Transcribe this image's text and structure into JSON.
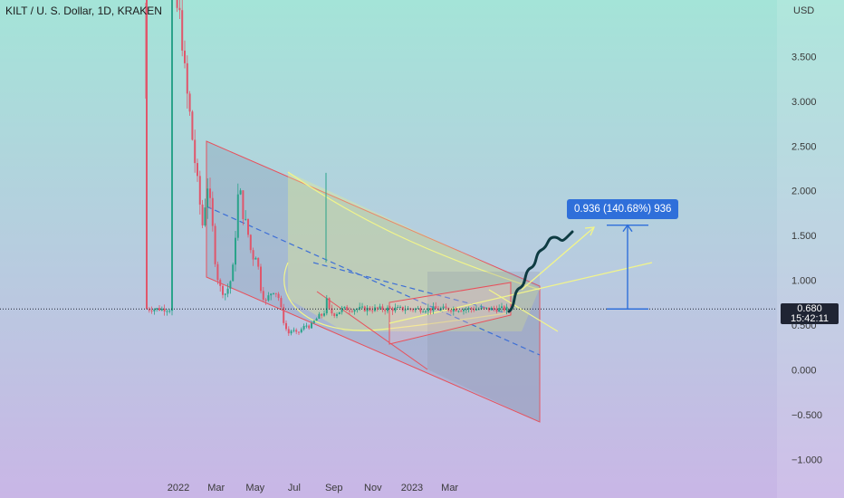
{
  "title": "KILT / U. S. Dollar, 1D, KRAKEN",
  "price_label": {
    "price": "0.680",
    "countdown": "15:42:11"
  },
  "measure_label": "0.936 (140.68%) 936",
  "colors": {
    "up": "#2aa38a",
    "down": "#e0566b",
    "channel": "#e8505b",
    "trend": "#3d6fd6",
    "measure": "#2f6fda",
    "projection": "#0e3b42",
    "arrow": "#f2f58a",
    "bg_top": "#a4e4d8",
    "bg_bottom": "#c9b6e6"
  },
  "chart_data": {
    "type": "candlestick",
    "title": "KILT / U. S. Dollar, 1D, KRAKEN",
    "ylabel": "USD",
    "ylim": [
      -1.3,
      4.3
    ],
    "yticks": [
      "3.500",
      "3.000",
      "2.500",
      "2.000",
      "1.500",
      "1.000",
      "0.500",
      "0.000",
      "−0.500",
      "−1.000"
    ],
    "ytick_values": [
      3.5,
      3.0,
      2.5,
      2.0,
      1.5,
      1.0,
      0.5,
      0.0,
      -0.5,
      -1.0
    ],
    "xticks": [
      "2022",
      "Mar",
      "May",
      "Jul",
      "Sep",
      "Nov",
      "2023",
      "Mar"
    ],
    "grid": false,
    "last_price": 0.68,
    "measure": {
      "from": 0.68,
      "to": 1.616,
      "change": 0.936,
      "percent": 140.68
    },
    "price_path": [
      [
        "2021-12-19",
        4.3
      ],
      [
        "2021-12-24",
        4.1
      ],
      [
        "2022-01-01",
        4.0
      ],
      [
        "2022-01-06",
        3.8
      ],
      [
        "2022-01-12",
        3.2
      ],
      [
        "2022-01-18",
        2.9
      ],
      [
        "2022-01-24",
        2.5
      ],
      [
        "2022-02-01",
        2.0
      ],
      [
        "2022-02-08",
        1.6
      ],
      [
        "2022-02-15",
        2.1
      ],
      [
        "2022-02-22",
        1.7
      ],
      [
        "2022-03-01",
        1.1
      ],
      [
        "2022-03-08",
        0.9
      ],
      [
        "2022-03-15",
        0.85
      ],
      [
        "2022-03-22",
        0.95
      ],
      [
        "2022-03-29",
        1.2
      ],
      [
        "2022-04-02",
        1.8
      ],
      [
        "2022-04-06",
        2.05
      ],
      [
        "2022-04-12",
        1.75
      ],
      [
        "2022-04-19",
        1.55
      ],
      [
        "2022-04-26",
        1.25
      ],
      [
        "2022-05-03",
        1.3
      ],
      [
        "2022-05-10",
        0.9
      ],
      [
        "2022-05-17",
        0.75
      ],
      [
        "2022-05-24",
        0.85
      ],
      [
        "2022-05-31",
        0.9
      ],
      [
        "2022-06-07",
        0.8
      ],
      [
        "2022-06-14",
        0.55
      ],
      [
        "2022-06-21",
        0.4
      ],
      [
        "2022-06-28",
        0.45
      ],
      [
        "2022-07-05",
        0.4
      ],
      [
        "2022-07-12",
        0.45
      ],
      [
        "2022-07-19",
        0.5
      ],
      [
        "2022-07-26",
        0.48
      ],
      [
        "2022-08-02",
        0.55
      ],
      [
        "2022-08-09",
        0.6
      ],
      [
        "2022-08-16",
        0.62
      ],
      [
        "2022-08-21",
        0.78
      ],
      [
        "2022-08-25",
        0.66
      ],
      [
        "2022-08-31",
        0.62
      ],
      [
        "2022-09-07",
        0.64
      ],
      [
        "2022-09-14",
        0.68
      ],
      [
        "2022-09-18",
        0.68
      ]
    ]
  }
}
